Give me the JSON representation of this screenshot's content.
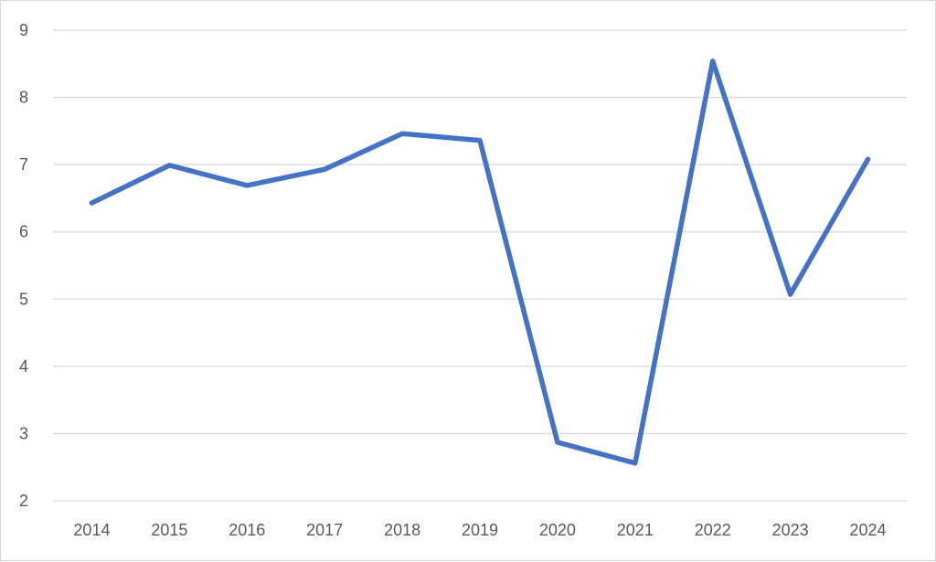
{
  "chart_data": {
    "type": "line",
    "title": "",
    "xlabel": "",
    "ylabel": "",
    "categories": [
      "2014",
      "2015",
      "2016",
      "2017",
      "2018",
      "2019",
      "2020",
      "2021",
      "2022",
      "2023",
      "2024"
    ],
    "series": [
      {
        "values": [
          6.43,
          6.99,
          6.69,
          6.93,
          7.46,
          7.36,
          2.87,
          2.56,
          8.54,
          5.07,
          7.08
        ],
        "color": "#4472C4"
      }
    ],
    "ylim": [
      2,
      9
    ],
    "yticks": [
      "2",
      "3",
      "4",
      "5",
      "6",
      "7",
      "8",
      "9"
    ],
    "grid": true,
    "legend": "none",
    "gridline_color": "#d9d9d9"
  }
}
